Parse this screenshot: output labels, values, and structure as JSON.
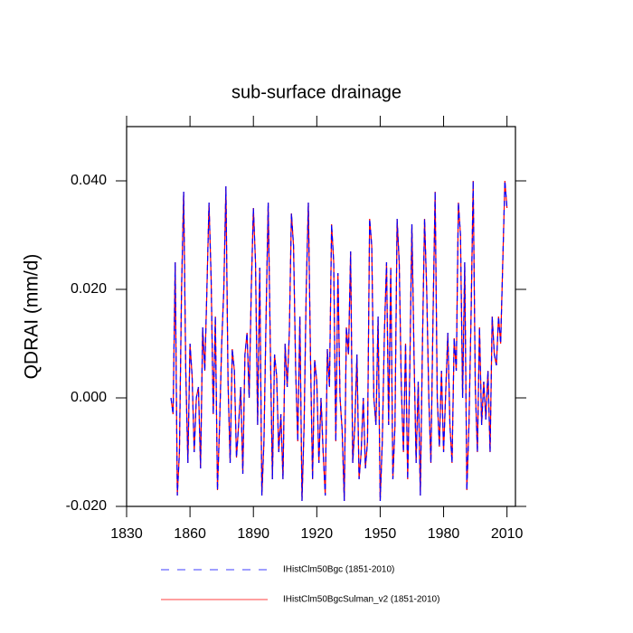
{
  "chart_data": {
    "type": "line",
    "title": "sub-surface drainage",
    "y_label": "QDRAI  (mm/d)",
    "x": [
      1851,
      1852,
      1853,
      1854,
      1855,
      1856,
      1857,
      1858,
      1859,
      1860,
      1861,
      1862,
      1863,
      1864,
      1865,
      1866,
      1867,
      1868,
      1869,
      1870,
      1871,
      1872,
      1873,
      1874,
      1875,
      1876,
      1877,
      1878,
      1879,
      1880,
      1881,
      1882,
      1883,
      1884,
      1885,
      1886,
      1887,
      1888,
      1889,
      1890,
      1891,
      1892,
      1893,
      1894,
      1895,
      1896,
      1897,
      1898,
      1899,
      1900,
      1901,
      1902,
      1903,
      1904,
      1905,
      1906,
      1907,
      1908,
      1909,
      1910,
      1911,
      1912,
      1913,
      1914,
      1915,
      1916,
      1917,
      1918,
      1919,
      1920,
      1921,
      1922,
      1923,
      1924,
      1925,
      1926,
      1927,
      1928,
      1929,
      1930,
      1931,
      1932,
      1933,
      1934,
      1935,
      1936,
      1937,
      1938,
      1939,
      1940,
      1941,
      1942,
      1943,
      1944,
      1945,
      1946,
      1947,
      1948,
      1949,
      1950,
      1951,
      1952,
      1953,
      1954,
      1955,
      1956,
      1957,
      1958,
      1959,
      1960,
      1961,
      1962,
      1963,
      1964,
      1965,
      1966,
      1967,
      1968,
      1969,
      1970,
      1971,
      1972,
      1973,
      1974,
      1975,
      1976,
      1977,
      1978,
      1979,
      1980,
      1981,
      1982,
      1983,
      1984,
      1985,
      1986,
      1987,
      1988,
      1989,
      1990,
      1991,
      1992,
      1993,
      1994,
      1995,
      1996,
      1997,
      1998,
      1999,
      2000,
      2001,
      2002,
      2003,
      2004,
      2005,
      2006,
      2007,
      2008,
      2009,
      2010
    ],
    "series": [
      {
        "name": "IHistClm50Bgc (1851-2010)",
        "color": "#0000ff",
        "dashed": true,
        "values": [
          0.0,
          -0.003,
          0.025,
          -0.018,
          -0.01,
          0.02,
          0.038,
          0.005,
          -0.012,
          0.01,
          0.004,
          -0.01,
          0.0,
          0.002,
          -0.013,
          0.013,
          0.005,
          0.02,
          0.036,
          0.022,
          -0.003,
          0.015,
          -0.017,
          -0.005,
          0.01,
          0.02,
          0.039,
          0.003,
          -0.012,
          0.009,
          0.005,
          -0.011,
          -0.005,
          0.002,
          -0.014,
          0.008,
          0.012,
          0.0,
          0.02,
          0.035,
          0.025,
          -0.005,
          0.024,
          -0.018,
          -0.008,
          0.015,
          0.036,
          0.01,
          -0.015,
          0.008,
          0.004,
          -0.01,
          -0.003,
          -0.015,
          0.01,
          0.002,
          0.012,
          0.034,
          0.028,
          0.005,
          -0.008,
          0.015,
          -0.019,
          -0.005,
          0.02,
          0.036,
          0.008,
          -0.015,
          0.007,
          0.003,
          -0.012,
          0.0,
          -0.01,
          -0.018,
          0.009,
          0.002,
          0.032,
          0.025,
          -0.008,
          0.023,
          0.0,
          -0.006,
          -0.019,
          0.013,
          0.008,
          0.027,
          -0.012,
          -0.005,
          0.008,
          -0.015,
          -0.01,
          0.0,
          -0.013,
          -0.008,
          0.033,
          0.028,
          0.0,
          -0.005,
          0.015,
          -0.019,
          -0.008,
          0.012,
          0.025,
          -0.005,
          0.024,
          -0.015,
          -0.005,
          0.033,
          0.025,
          0.002,
          -0.01,
          0.01,
          -0.015,
          0.005,
          0.032,
          0.008,
          -0.012,
          0.003,
          -0.018,
          0.01,
          0.033,
          0.02,
          0.0,
          -0.012,
          0.015,
          0.038,
          0.0,
          -0.009,
          0.005,
          -0.01,
          0.001,
          0.012,
          -0.005,
          -0.012,
          0.011,
          0.005,
          0.036,
          0.03,
          0.0,
          0.025,
          -0.017,
          -0.005,
          0.015,
          0.04,
          0.002,
          -0.01,
          0.013,
          -0.005,
          0.003,
          -0.004,
          0.005,
          -0.01,
          0.015,
          0.008,
          0.006,
          0.015,
          0.01,
          0.025,
          0.04,
          0.035
        ]
      },
      {
        "name": "IHistClm50BgcSulman_v2 (1851-2010)",
        "color": "#ff0000",
        "dashed": false,
        "values": [
          0.0,
          -0.003,
          0.025,
          -0.018,
          -0.01,
          0.02,
          0.038,
          0.005,
          -0.012,
          0.01,
          0.004,
          -0.01,
          0.0,
          0.002,
          -0.013,
          0.013,
          0.005,
          0.02,
          0.036,
          0.022,
          -0.003,
          0.015,
          -0.017,
          -0.005,
          0.01,
          0.02,
          0.039,
          0.003,
          -0.012,
          0.009,
          0.005,
          -0.011,
          -0.005,
          0.002,
          -0.014,
          0.008,
          0.012,
          0.0,
          0.02,
          0.035,
          0.025,
          -0.005,
          0.024,
          -0.018,
          -0.008,
          0.015,
          0.036,
          0.01,
          -0.015,
          0.008,
          0.004,
          -0.01,
          -0.003,
          -0.015,
          0.01,
          0.002,
          0.012,
          0.034,
          0.028,
          0.005,
          -0.008,
          0.015,
          -0.019,
          -0.005,
          0.02,
          0.036,
          0.008,
          -0.015,
          0.007,
          0.003,
          -0.012,
          0.0,
          -0.01,
          -0.018,
          0.009,
          0.002,
          0.032,
          0.025,
          -0.008,
          0.023,
          0.0,
          -0.006,
          -0.019,
          0.013,
          0.008,
          0.027,
          -0.012,
          -0.005,
          0.008,
          -0.015,
          -0.01,
          0.0,
          -0.013,
          -0.008,
          0.033,
          0.028,
          0.0,
          -0.005,
          0.015,
          -0.019,
          -0.008,
          0.012,
          0.025,
          -0.005,
          0.024,
          -0.015,
          -0.005,
          0.033,
          0.025,
          0.002,
          -0.01,
          0.01,
          -0.015,
          0.005,
          0.032,
          0.008,
          -0.012,
          0.003,
          -0.018,
          0.01,
          0.033,
          0.02,
          0.0,
          -0.012,
          0.015,
          0.038,
          0.0,
          -0.009,
          0.005,
          -0.01,
          0.001,
          0.012,
          -0.005,
          -0.012,
          0.011,
          0.005,
          0.036,
          0.03,
          0.0,
          0.025,
          -0.017,
          -0.005,
          0.015,
          0.04,
          0.002,
          -0.01,
          0.013,
          -0.005,
          0.003,
          -0.004,
          0.005,
          -0.01,
          0.015,
          0.008,
          0.006,
          0.015,
          0.01,
          0.025,
          0.04,
          0.035
        ]
      }
    ],
    "xlim": [
      1830,
      2014
    ],
    "xticks": [
      1830,
      1860,
      1890,
      1920,
      1950,
      1980,
      2010
    ],
    "ylim": [
      -0.02,
      0.05
    ],
    "yticks": [
      {
        "value": -0.02,
        "label": "-0.020"
      },
      {
        "value": 0,
        "label": "0.000"
      },
      {
        "value": 0.02,
        "label": "0.020"
      },
      {
        "value": 0.04,
        "label": "0.040"
      }
    ],
    "grid": false
  }
}
